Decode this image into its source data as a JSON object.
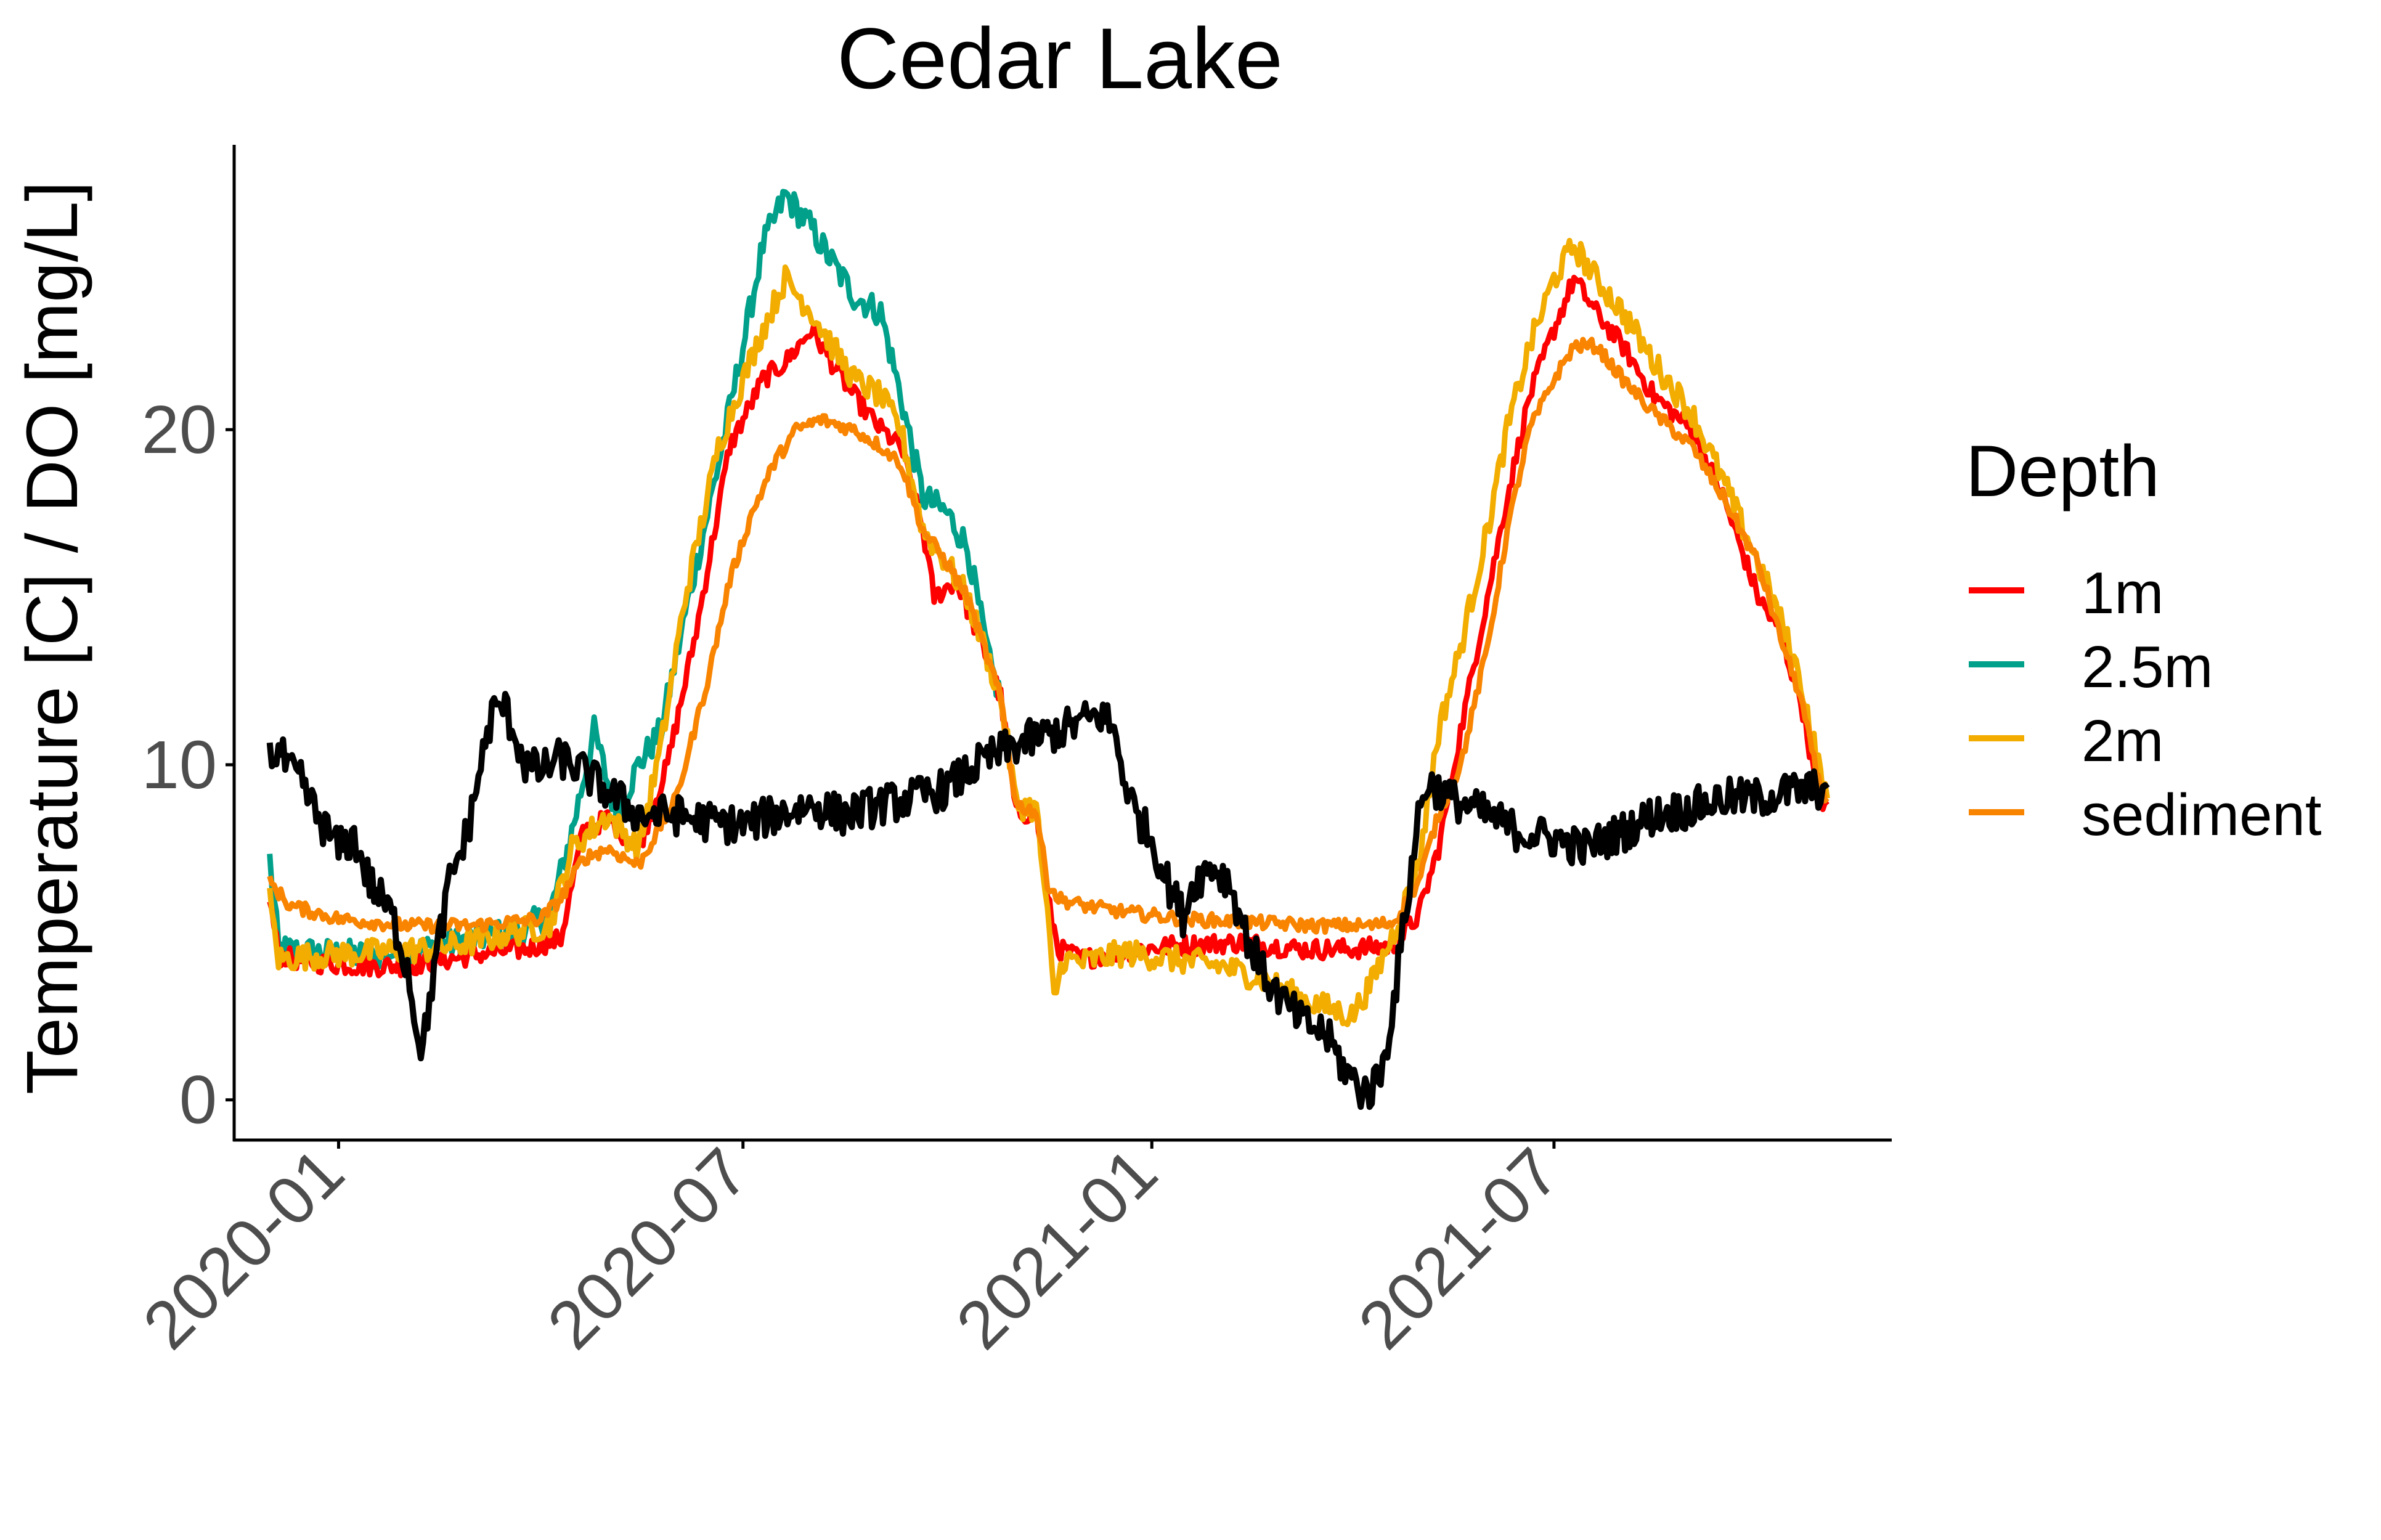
{
  "chart_data": {
    "type": "line",
    "title": "Cedar Lake",
    "xlabel": "",
    "ylabel": "Temperature [C] / DO [mg/L]",
    "x_ticks": [
      "2020-01",
      "2020-07",
      "2021-01",
      "2021-07"
    ],
    "y_ticks": [
      "0",
      "10",
      "20"
    ],
    "xlim": [
      "2019-11-15",
      "2021-11-30"
    ],
    "ylim": [
      -1.2,
      28.5
    ],
    "legend": {
      "title": "Depth",
      "position": "right",
      "entries": [
        "1m",
        "2.5m",
        "2m",
        "sediment"
      ]
    },
    "grid": false,
    "series": [
      {
        "name": "1m",
        "color": "#FF0000",
        "points": [
          [
            "2019-12-01",
            6.0
          ],
          [
            "2019-12-05",
            4.3
          ],
          [
            "2019-12-20",
            4.1
          ],
          [
            "2020-01-10",
            4.0
          ],
          [
            "2020-02-01",
            4.0
          ],
          [
            "2020-02-20",
            4.2
          ],
          [
            "2020-03-10",
            4.4
          ],
          [
            "2020-03-25",
            4.5
          ],
          [
            "2020-04-10",
            4.8
          ],
          [
            "2020-04-20",
            8.0
          ],
          [
            "2020-05-01",
            8.4
          ],
          [
            "2020-05-15",
            7.5
          ],
          [
            "2020-05-28",
            10.0
          ],
          [
            "2020-06-10",
            14.0
          ],
          [
            "2020-06-25",
            19.5
          ],
          [
            "2020-07-10",
            21.5
          ],
          [
            "2020-07-20",
            22.0
          ],
          [
            "2020-08-01",
            23.0
          ],
          [
            "2020-08-10",
            22.0
          ],
          [
            "2020-08-20",
            21.0
          ],
          [
            "2020-09-01",
            20.0
          ],
          [
            "2020-09-10",
            19.5
          ],
          [
            "2020-09-20",
            17.0
          ],
          [
            "2020-09-25",
            15.0
          ],
          [
            "2020-10-05",
            15.5
          ],
          [
            "2020-10-20",
            13.0
          ],
          [
            "2020-10-25",
            12.0
          ],
          [
            "2020-11-01",
            8.5
          ],
          [
            "2020-11-10",
            8.6
          ],
          [
            "2020-11-15",
            6.0
          ],
          [
            "2020-11-20",
            4.5
          ],
          [
            "2020-12-01",
            4.2
          ],
          [
            "2020-12-15",
            4.4
          ],
          [
            "2021-01-10",
            4.6
          ],
          [
            "2021-02-10",
            4.7
          ],
          [
            "2021-03-10",
            4.5
          ],
          [
            "2021-04-01",
            4.5
          ],
          [
            "2021-04-20",
            4.6
          ],
          [
            "2021-05-01",
            5.5
          ],
          [
            "2021-05-10",
            7.5
          ],
          [
            "2021-05-20",
            11.0
          ],
          [
            "2021-06-01",
            15.0
          ],
          [
            "2021-06-10",
            18.0
          ],
          [
            "2021-06-20",
            21.0
          ],
          [
            "2021-07-01",
            23.0
          ],
          [
            "2021-07-10",
            24.5
          ],
          [
            "2021-07-20",
            23.5
          ],
          [
            "2021-08-01",
            22.5
          ],
          [
            "2021-08-15",
            21.0
          ],
          [
            "2021-09-01",
            20.0
          ],
          [
            "2021-09-15",
            18.0
          ],
          [
            "2021-10-01",
            15.0
          ],
          [
            "2021-10-10",
            14.0
          ],
          [
            "2021-10-20",
            12.0
          ],
          [
            "2021-10-28",
            9.0
          ],
          [
            "2021-11-01",
            8.8
          ]
        ]
      },
      {
        "name": "2.5m",
        "color": "#00A08A",
        "points": [
          [
            "2019-12-01",
            7.2
          ],
          [
            "2019-12-05",
            4.5
          ],
          [
            "2019-12-20",
            4.4
          ],
          [
            "2020-01-15",
            4.3
          ],
          [
            "2020-02-10",
            4.5
          ],
          [
            "2020-03-01",
            4.8
          ],
          [
            "2020-03-20",
            5.0
          ],
          [
            "2020-04-05",
            5.5
          ],
          [
            "2020-04-15",
            8.0
          ],
          [
            "2020-04-25",
            11.0
          ],
          [
            "2020-05-05",
            8.5
          ],
          [
            "2020-05-15",
            10.0
          ],
          [
            "2020-05-25",
            11.0
          ],
          [
            "2020-06-05",
            14.5
          ],
          [
            "2020-06-20",
            19.0
          ],
          [
            "2020-07-01",
            22.5
          ],
          [
            "2020-07-10",
            25.5
          ],
          [
            "2020-07-20",
            27.0
          ],
          [
            "2020-08-01",
            26.0
          ],
          [
            "2020-08-10",
            25.0
          ],
          [
            "2020-08-20",
            24.0
          ],
          [
            "2020-09-01",
            23.5
          ],
          [
            "2020-09-10",
            21.0
          ],
          [
            "2020-09-20",
            18.0
          ],
          [
            "2020-10-01",
            17.5
          ],
          [
            "2020-10-10",
            16.5
          ],
          [
            "2020-10-20",
            13.0
          ],
          [
            "2020-10-25",
            12.0
          ]
        ]
      },
      {
        "name": "2m",
        "color": "#F2AD00",
        "points": [
          [
            "2019-12-01",
            6.0
          ],
          [
            "2019-12-05",
            4.2
          ],
          [
            "2019-12-20",
            4.3
          ],
          [
            "2020-01-15",
            4.4
          ],
          [
            "2020-02-10",
            4.5
          ],
          [
            "2020-03-01",
            4.7
          ],
          [
            "2020-03-20",
            5.0
          ],
          [
            "2020-04-05",
            5.2
          ],
          [
            "2020-04-15",
            7.5
          ],
          [
            "2020-05-01",
            8.5
          ],
          [
            "2020-05-15",
            7.5
          ],
          [
            "2020-05-25",
            10.5
          ],
          [
            "2020-06-05",
            15.0
          ],
          [
            "2020-06-20",
            19.5
          ],
          [
            "2020-07-01",
            21.5
          ],
          [
            "2020-07-10",
            23.0
          ],
          [
            "2020-07-20",
            24.5
          ],
          [
            "2020-08-01",
            23.5
          ],
          [
            "2020-08-10",
            22.5
          ],
          [
            "2020-08-20",
            21.5
          ],
          [
            "2020-09-01",
            21.0
          ],
          [
            "2020-09-10",
            20.0
          ],
          [
            "2020-09-20",
            17.0
          ],
          [
            "2020-10-01",
            16.0
          ],
          [
            "2020-10-10",
            15.0
          ],
          [
            "2020-10-20",
            13.0
          ],
          [
            "2020-10-25",
            12.0
          ],
          [
            "2020-11-01",
            8.8
          ],
          [
            "2020-11-10",
            8.7
          ],
          [
            "2020-11-15",
            5.5
          ],
          [
            "2020-11-18",
            3.0
          ],
          [
            "2020-11-22",
            4.2
          ],
          [
            "2020-12-01",
            4.1
          ],
          [
            "2020-12-20",
            4.4
          ],
          [
            "2021-01-10",
            4.2
          ],
          [
            "2021-02-01",
            4.0
          ],
          [
            "2021-02-20",
            3.6
          ],
          [
            "2021-03-10",
            3.0
          ],
          [
            "2021-04-01",
            2.5
          ],
          [
            "2021-04-10",
            3.5
          ],
          [
            "2021-04-20",
            5.0
          ],
          [
            "2021-05-01",
            7.0
          ],
          [
            "2021-05-10",
            11.0
          ],
          [
            "2021-05-20",
            13.5
          ],
          [
            "2021-06-01",
            17.0
          ],
          [
            "2021-06-10",
            20.0
          ],
          [
            "2021-06-20",
            22.5
          ],
          [
            "2021-07-01",
            24.5
          ],
          [
            "2021-07-10",
            25.5
          ],
          [
            "2021-07-20",
            24.5
          ],
          [
            "2021-08-01",
            23.5
          ],
          [
            "2021-08-15",
            22.0
          ],
          [
            "2021-09-01",
            20.5
          ],
          [
            "2021-09-15",
            18.5
          ],
          [
            "2021-10-01",
            16.0
          ],
          [
            "2021-10-10",
            14.5
          ],
          [
            "2021-10-20",
            12.5
          ],
          [
            "2021-10-28",
            10.0
          ],
          [
            "2021-11-01",
            9.0
          ]
        ]
      },
      {
        "name": "sediment",
        "color": "#F98400",
        "points": [
          [
            "2019-12-01",
            6.5
          ],
          [
            "2019-12-10",
            5.8
          ],
          [
            "2020-01-01",
            5.4
          ],
          [
            "2020-02-01",
            5.2
          ],
          [
            "2020-03-01",
            5.2
          ],
          [
            "2020-04-01",
            5.4
          ],
          [
            "2020-04-10",
            6.0
          ],
          [
            "2020-04-20",
            7.2
          ],
          [
            "2020-05-01",
            7.5
          ],
          [
            "2020-05-15",
            7.0
          ],
          [
            "2020-06-01",
            9.0
          ],
          [
            "2020-06-15",
            12.5
          ],
          [
            "2020-06-25",
            15.5
          ],
          [
            "2020-07-05",
            17.5
          ],
          [
            "2020-07-15",
            19.0
          ],
          [
            "2020-07-25",
            20.0
          ],
          [
            "2020-08-05",
            20.3
          ],
          [
            "2020-08-20",
            20.0
          ],
          [
            "2020-09-01",
            19.5
          ],
          [
            "2020-09-10",
            19.0
          ],
          [
            "2020-09-20",
            17.0
          ],
          [
            "2020-10-01",
            16.0
          ],
          [
            "2020-10-10",
            15.0
          ],
          [
            "2020-10-20",
            13.0
          ],
          [
            "2020-10-25",
            12.0
          ],
          [
            "2020-11-01",
            8.8
          ],
          [
            "2020-11-10",
            8.6
          ],
          [
            "2020-11-15",
            6.5
          ],
          [
            "2020-11-20",
            6.0
          ],
          [
            "2020-12-01",
            5.8
          ],
          [
            "2020-12-20",
            5.6
          ],
          [
            "2021-01-15",
            5.4
          ],
          [
            "2021-02-15",
            5.3
          ],
          [
            "2021-03-15",
            5.2
          ],
          [
            "2021-04-10",
            5.2
          ],
          [
            "2021-04-20",
            5.3
          ],
          [
            "2021-05-01",
            6.5
          ],
          [
            "2021-05-10",
            8.5
          ],
          [
            "2021-05-20",
            10.0
          ],
          [
            "2021-06-01",
            13.5
          ],
          [
            "2021-06-10",
            17.0
          ],
          [
            "2021-06-20",
            20.0
          ],
          [
            "2021-07-01",
            21.5
          ],
          [
            "2021-07-10",
            22.5
          ],
          [
            "2021-07-20",
            22.5
          ],
          [
            "2021-08-01",
            21.5
          ],
          [
            "2021-08-15",
            20.5
          ],
          [
            "2021-09-01",
            19.5
          ],
          [
            "2021-09-15",
            18.0
          ],
          [
            "2021-10-01",
            16.0
          ],
          [
            "2021-10-10",
            14.0
          ],
          [
            "2021-10-20",
            12.0
          ],
          [
            "2021-10-28",
            9.5
          ],
          [
            "2021-11-01",
            9.0
          ]
        ]
      },
      {
        "color": "#000000",
        "points": [
          [
            "2019-12-01",
            10.2
          ],
          [
            "2019-12-05",
            10.4
          ],
          [
            "2019-12-10",
            9.8
          ],
          [
            "2019-12-15",
            9.5
          ],
          [
            "2019-12-22",
            8.5
          ],
          [
            "2020-01-01",
            7.5
          ],
          [
            "2020-01-08",
            7.8
          ],
          [
            "2020-01-15",
            6.5
          ],
          [
            "2020-01-20",
            6.0
          ],
          [
            "2020-01-25",
            5.5
          ],
          [
            "2020-02-01",
            4.0
          ],
          [
            "2020-02-05",
            2.2
          ],
          [
            "2020-02-08",
            1.5
          ],
          [
            "2020-02-12",
            3.5
          ],
          [
            "2020-02-20",
            6.5
          ],
          [
            "2020-02-28",
            8.0
          ],
          [
            "2020-03-05",
            10.0
          ],
          [
            "2020-03-10",
            11.5
          ],
          [
            "2020-03-15",
            11.8
          ],
          [
            "2020-03-20",
            11.0
          ],
          [
            "2020-03-25",
            10.0
          ],
          [
            "2020-04-01",
            9.8
          ],
          [
            "2020-04-10",
            10.2
          ],
          [
            "2020-04-20",
            9.8
          ],
          [
            "2020-05-01",
            9.2
          ],
          [
            "2020-05-15",
            8.5
          ],
          [
            "2020-06-01",
            8.5
          ],
          [
            "2020-06-15",
            8.3
          ],
          [
            "2020-07-01",
            8.2
          ],
          [
            "2020-07-15",
            8.5
          ],
          [
            "2020-08-01",
            8.8
          ],
          [
            "2020-08-15",
            8.5
          ],
          [
            "2020-09-01",
            8.8
          ],
          [
            "2020-09-15",
            9.0
          ],
          [
            "2020-10-01",
            9.3
          ],
          [
            "2020-10-10",
            9.8
          ],
          [
            "2020-10-20",
            10.2
          ],
          [
            "2020-11-01",
            10.6
          ],
          [
            "2020-11-10",
            10.8
          ],
          [
            "2020-11-20",
            11.0
          ],
          [
            "2020-12-01",
            11.3
          ],
          [
            "2020-12-10",
            11.5
          ],
          [
            "2020-12-15",
            11.0
          ],
          [
            "2020-12-20",
            9.5
          ],
          [
            "2020-12-25",
            8.5
          ],
          [
            "2021-01-01",
            7.8
          ],
          [
            "2021-01-08",
            6.5
          ],
          [
            "2021-01-15",
            5.5
          ],
          [
            "2021-01-20",
            6.5
          ],
          [
            "2021-01-28",
            7.0
          ],
          [
            "2021-02-05",
            6.5
          ],
          [
            "2021-02-12",
            5.0
          ],
          [
            "2021-02-20",
            3.8
          ],
          [
            "2021-02-28",
            3.0
          ],
          [
            "2021-03-10",
            2.3
          ],
          [
            "2021-03-20",
            2.0
          ],
          [
            "2021-03-28",
            1.0
          ],
          [
            "2021-04-05",
            0.3
          ],
          [
            "2021-04-10",
            0.3
          ],
          [
            "2021-04-15",
            1.0
          ],
          [
            "2021-04-20",
            3.0
          ],
          [
            "2021-04-25",
            5.5
          ],
          [
            "2021-05-01",
            8.5
          ],
          [
            "2021-05-05",
            9.5
          ],
          [
            "2021-05-15",
            9.0
          ],
          [
            "2021-06-01",
            8.5
          ],
          [
            "2021-06-15",
            8.0
          ],
          [
            "2021-07-01",
            7.8
          ],
          [
            "2021-07-15",
            7.5
          ],
          [
            "2021-08-01",
            8.0
          ],
          [
            "2021-08-15",
            8.5
          ],
          [
            "2021-09-01",
            8.7
          ],
          [
            "2021-09-15",
            9.0
          ],
          [
            "2021-10-01",
            9.0
          ],
          [
            "2021-10-15",
            9.2
          ],
          [
            "2021-11-01",
            9.3
          ]
        ]
      }
    ]
  }
}
